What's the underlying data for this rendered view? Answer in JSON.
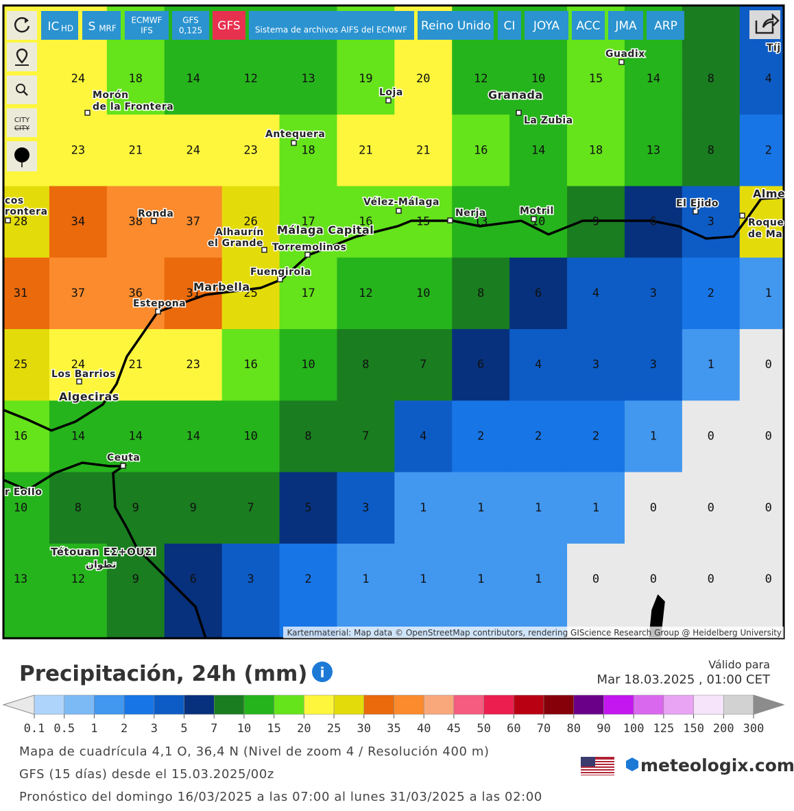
{
  "toolbar": {
    "buttons": [
      {
        "label": "IC",
        "sub": "HD"
      },
      {
        "label": "S",
        "sub": "MRF"
      },
      {
        "label": "ECMWF",
        "sub": "IFS"
      },
      {
        "label": "GFS",
        "sub": "0,125"
      },
      {
        "label": "GFS"
      },
      {
        "label": "Sistema de archivos AIFS del ECMWF"
      },
      {
        "label": "Reino Unido"
      },
      {
        "label": "CI"
      },
      {
        "label": "JOYA"
      },
      {
        "label": "ACC"
      },
      {
        "label": "JMA"
      },
      {
        "label": "ARP"
      }
    ],
    "city_toggle": [
      "CITY",
      "CITY"
    ]
  },
  "map": {
    "grid": [
      [
        null,
        24,
        18,
        14,
        12,
        13,
        19,
        20,
        12,
        10,
        15,
        14,
        8,
        4
      ],
      [
        null,
        23,
        21,
        24,
        23,
        18,
        21,
        21,
        16,
        14,
        18,
        13,
        8,
        2
      ],
      [
        28,
        34,
        38,
        37,
        26,
        17,
        16,
        15,
        13,
        10,
        9,
        6,
        3,
        null
      ],
      [
        31,
        37,
        36,
        31,
        25,
        17,
        12,
        10,
        8,
        6,
        4,
        3,
        2,
        1
      ],
      [
        25,
        24,
        21,
        23,
        16,
        10,
        8,
        7,
        6,
        4,
        3,
        3,
        1,
        0
      ],
      [
        16,
        14,
        14,
        14,
        10,
        8,
        7,
        4,
        2,
        2,
        2,
        1,
        0,
        0
      ],
      [
        10,
        8,
        9,
        9,
        7,
        5,
        3,
        1,
        1,
        1,
        1,
        0,
        0,
        0
      ],
      [
        13,
        12,
        9,
        6,
        3,
        2,
        1,
        1,
        1,
        1,
        0,
        0,
        0,
        0
      ]
    ],
    "places": [
      "Tíj",
      "Guadix",
      "Morón",
      "de la Frontera",
      "Loja",
      "Granada",
      "La Zubia",
      "Antequera",
      "Vélez-Málaga",
      "Nerja",
      "Motril",
      "El Ejido",
      "Alme",
      "Roque",
      "de Ma",
      "Ronda",
      "Alhaurín",
      "el Grande",
      "Málaga Capital",
      "Torremolinos",
      "Fuengirola",
      "Marbella",
      "Estepona",
      "Los Barrios",
      "Algeciras",
      "Ceuta",
      "Tétouan ΕΣ+ΟUΣI",
      "تطوان",
      "cos",
      "rontera",
      "r EoIIo"
    ],
    "attribution": "Kartenmaterial: Map data © OpenStreetMap contributors, rendering GIScience Research Group @ Heidelberg University"
  },
  "legend": {
    "title": "Precipitación, 24h (mm)",
    "valid_label": "Válido para",
    "valid_time": "Mar 18.03.2025 , 01:00 CET",
    "thresholds": [
      0.1,
      0.5,
      1,
      2,
      3,
      5,
      7,
      10,
      15,
      20,
      25,
      30,
      35,
      40,
      45,
      50,
      60,
      70,
      80,
      90,
      100,
      125,
      150,
      200,
      300
    ],
    "below_color": "#e9e9e9",
    "above_color": "#8c8c8c",
    "colors": [
      "#aed4fb",
      "#7cbaf6",
      "#4297ef",
      "#1775e6",
      "#0d5cc6",
      "#07317c",
      "#1a7d20",
      "#26b41c",
      "#65e31b",
      "#fdf63c",
      "#e4dc0a",
      "#ea6a0c",
      "#fb8b2d",
      "#f9a87b",
      "#f55c80",
      "#ec1d4f",
      "#b80012",
      "#86000a",
      "#6a0088",
      "#c417f0",
      "#da68ef",
      "#e9a4f4",
      "#f6e4fb",
      "#d2d2d2"
    ]
  },
  "footer": {
    "lines": [
      "Mapa de cuadrícula 4,1 O, 36,4 N (Nivel de zoom 4 / Resolución 400 m)",
      "GFS (15 días) desde el 15.03.2025/00z",
      "Pronóstico del domingo 16/03/2025 a las 07:00 al lunes 31/03/2025 a las 02:00"
    ],
    "brand": "meteologix.com"
  }
}
